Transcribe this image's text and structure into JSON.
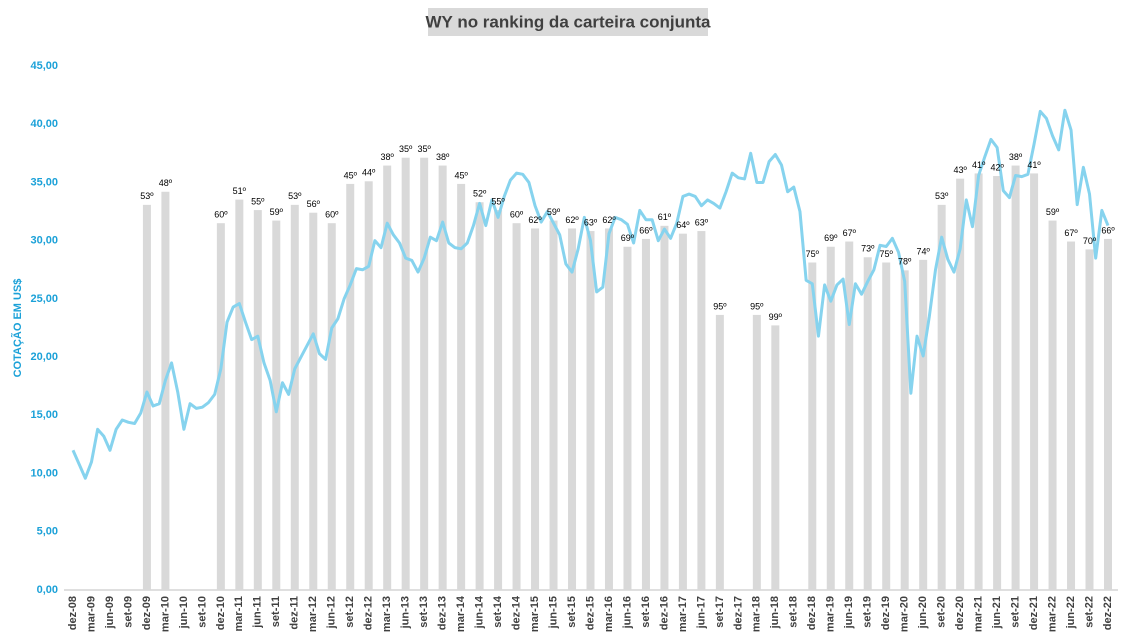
{
  "chart_data": {
    "type": "combo",
    "title": "WY no ranking da carteira conjunta",
    "y_label": "COTAÇÃO EM US$",
    "categories": [
      "dez-08",
      null,
      null,
      "mar-09",
      null,
      null,
      "jun-09",
      null,
      null,
      "set-09",
      null,
      null,
      "dez-09",
      null,
      null,
      "mar-10",
      null,
      null,
      "jun-10",
      null,
      null,
      "set-10",
      null,
      null,
      "dez-10",
      null,
      null,
      "mar-11",
      null,
      null,
      "jun-11",
      null,
      null,
      "set-11",
      null,
      null,
      "dez-11",
      null,
      null,
      "mar-12",
      null,
      null,
      "jun-12",
      null,
      null,
      "set-12",
      null,
      null,
      "dez-12",
      null,
      null,
      "mar-13",
      null,
      null,
      "jun-13",
      null,
      null,
      "set-13",
      null,
      null,
      "dez-13",
      null,
      null,
      "mar-14",
      null,
      null,
      "jun-14",
      null,
      null,
      "set-14",
      null,
      null,
      "dez-14",
      null,
      null,
      "mar-15",
      null,
      null,
      "jun-15",
      null,
      null,
      "set-15",
      null,
      null,
      "dez-15",
      null,
      null,
      "mar-16",
      null,
      null,
      "jun-16",
      null,
      null,
      "set-16",
      null,
      null,
      "dez-16",
      null,
      null,
      "mar-17",
      null,
      null,
      "jun-17",
      null,
      null,
      "set-17",
      null,
      null,
      "dez-17",
      null,
      null,
      "mar-18",
      null,
      null,
      "jun-18",
      null,
      null,
      "set-18",
      null,
      null,
      "dez-18",
      null,
      null,
      "mar-19",
      null,
      null,
      "jun-19",
      null,
      null,
      "set-19",
      null,
      null,
      "dez-19",
      null,
      null,
      "mar-20",
      null,
      null,
      "jun-20",
      null,
      null,
      "set-20",
      null,
      null,
      "dez-20",
      null,
      null,
      "mar-21",
      null,
      null,
      "jun-21",
      null,
      null,
      "set-21",
      null,
      null,
      "dez-21",
      null,
      null,
      "mar-22",
      null,
      null,
      "jun-22",
      null,
      null,
      "set-22",
      null,
      null,
      "dez-22"
    ],
    "ylim": [
      0,
      45
    ],
    "yticks": [
      {
        "value": 0,
        "label": "0,00"
      },
      {
        "value": 5,
        "label": "5,00"
      },
      {
        "value": 10,
        "label": "10,00"
      },
      {
        "value": 15,
        "label": "15,00"
      },
      {
        "value": 20,
        "label": "20,00"
      },
      {
        "value": 25,
        "label": "25,00"
      },
      {
        "value": 30,
        "label": "30,00"
      },
      {
        "value": 35,
        "label": "35,00"
      },
      {
        "value": 40,
        "label": "40,00"
      },
      {
        "value": 45,
        "label": "45,00"
      }
    ],
    "y2lim": [
      200,
      0
    ],
    "series": [
      {
        "type": "line",
        "color": "#86d3ee",
        "values": [
          12.0,
          10.8,
          9.6,
          11.0,
          13.8,
          13.2,
          12.0,
          13.8,
          14.6,
          14.4,
          14.3,
          15.2,
          17.0,
          15.8,
          16.0,
          18.0,
          19.5,
          17.0,
          13.8,
          16.0,
          15.6,
          15.7,
          16.1,
          16.8,
          19.0,
          23.0,
          24.3,
          24.6,
          23.0,
          21.5,
          21.8,
          19.5,
          18.0,
          15.3,
          17.8,
          16.8,
          19.0,
          20.0,
          21.0,
          22.0,
          20.3,
          19.8,
          22.5,
          23.3,
          25.0,
          26.2,
          27.6,
          27.5,
          27.8,
          30.0,
          29.4,
          31.5,
          30.5,
          29.8,
          28.5,
          28.3,
          27.3,
          28.5,
          30.3,
          30.0,
          31.6,
          29.8,
          29.4,
          29.3,
          29.8,
          31.3,
          33.2,
          31.3,
          33.5,
          32.0,
          33.8,
          35.2,
          35.8,
          35.7,
          35.0,
          33.0,
          31.6,
          32.5,
          31.5,
          30.5,
          28.0,
          27.3,
          29.3,
          32.0,
          30.0,
          25.6,
          26.0,
          30.6,
          32.0,
          31.8,
          31.4,
          29.8,
          32.6,
          31.8,
          31.8,
          30.0,
          31.0,
          30.2,
          31.5,
          33.8,
          34.0,
          33.8,
          33.0,
          33.5,
          33.2,
          32.8,
          34.2,
          35.8,
          35.4,
          35.3,
          37.5,
          35.0,
          35.0,
          36.8,
          37.4,
          36.5,
          34.2,
          34.6,
          32.5,
          26.6,
          26.3,
          21.8,
          26.2,
          24.8,
          26.2,
          26.7,
          22.8,
          26.3,
          25.4,
          26.5,
          27.5,
          29.6,
          29.5,
          30.2,
          29.0,
          26.5,
          16.9,
          21.8,
          20.1,
          23.5,
          27.5,
          30.3,
          28.4,
          27.3,
          29.3,
          33.5,
          31.2,
          35.6,
          37.2,
          38.7,
          38.0,
          34.3,
          33.7,
          35.6,
          35.5,
          35.7,
          38.3,
          41.1,
          40.5,
          39.0,
          37.8,
          41.2,
          39.5,
          33.1,
          36.3,
          34.0,
          28.5,
          32.6,
          31.3
        ]
      },
      {
        "type": "bar",
        "axis": "y2",
        "color": "#d9d9d9",
        "values": [
          null,
          null,
          null,
          null,
          null,
          null,
          null,
          null,
          null,
          null,
          null,
          null,
          53,
          null,
          null,
          48,
          null,
          null,
          null,
          null,
          null,
          null,
          null,
          null,
          60,
          null,
          null,
          51,
          null,
          null,
          55,
          null,
          null,
          59,
          null,
          null,
          53,
          null,
          null,
          56,
          null,
          null,
          60,
          null,
          null,
          45,
          null,
          null,
          44,
          null,
          null,
          38,
          null,
          null,
          35,
          null,
          null,
          35,
          null,
          null,
          38,
          null,
          null,
          45,
          null,
          null,
          52,
          null,
          null,
          55,
          null,
          null,
          60,
          null,
          null,
          62,
          null,
          null,
          59,
          null,
          null,
          62,
          null,
          null,
          63,
          null,
          null,
          62,
          null,
          null,
          69,
          null,
          null,
          66,
          null,
          null,
          61,
          null,
          null,
          64,
          null,
          null,
          63,
          null,
          null,
          95,
          null,
          null,
          null,
          null,
          null,
          95,
          null,
          null,
          99,
          null,
          null,
          null,
          null,
          null,
          75,
          null,
          null,
          69,
          null,
          null,
          67,
          null,
          null,
          73,
          null,
          null,
          75,
          null,
          null,
          78,
          null,
          null,
          74,
          null,
          null,
          53,
          null,
          null,
          43,
          null,
          null,
          41,
          null,
          null,
          42,
          null,
          null,
          38,
          null,
          null,
          41,
          null,
          null,
          59,
          null,
          null,
          67,
          null,
          null,
          70,
          null,
          null,
          66
        ],
        "value_labels": [
          null,
          null,
          null,
          null,
          null,
          null,
          null,
          null,
          null,
          null,
          null,
          null,
          "53º",
          null,
          null,
          "48º",
          null,
          null,
          null,
          null,
          null,
          null,
          null,
          null,
          "60º",
          null,
          null,
          "51º",
          null,
          null,
          "55º",
          null,
          null,
          "59º",
          null,
          null,
          "53º",
          null,
          null,
          "56º",
          null,
          null,
          "60º",
          null,
          null,
          "45º",
          null,
          null,
          "44º",
          null,
          null,
          "38º",
          null,
          null,
          "35º",
          null,
          null,
          "35º",
          null,
          null,
          "38º",
          null,
          null,
          "45º",
          null,
          null,
          "52º",
          null,
          null,
          "55º",
          null,
          null,
          "60º",
          null,
          null,
          "62º",
          null,
          null,
          "59º",
          null,
          null,
          "62º",
          null,
          null,
          "63º",
          null,
          null,
          "62º",
          null,
          null,
          "69º",
          null,
          null,
          "66º",
          null,
          null,
          "61º",
          null,
          null,
          "64º",
          null,
          null,
          "63º",
          null,
          null,
          "95º",
          null,
          null,
          null,
          null,
          null,
          "95º",
          null,
          null,
          "99º",
          null,
          null,
          null,
          null,
          null,
          "75º",
          null,
          null,
          "69º",
          null,
          null,
          "67º",
          null,
          null,
          "73º",
          null,
          null,
          "75º",
          null,
          null,
          "78º",
          null,
          null,
          "74º",
          null,
          null,
          "53º",
          null,
          null,
          "43º",
          null,
          null,
          "41º",
          null,
          null,
          "42º",
          null,
          null,
          "38º",
          null,
          null,
          "41º",
          null,
          null,
          "59º",
          null,
          null,
          "67º",
          null,
          null,
          "70º",
          null,
          null,
          "66º"
        ]
      }
    ]
  }
}
